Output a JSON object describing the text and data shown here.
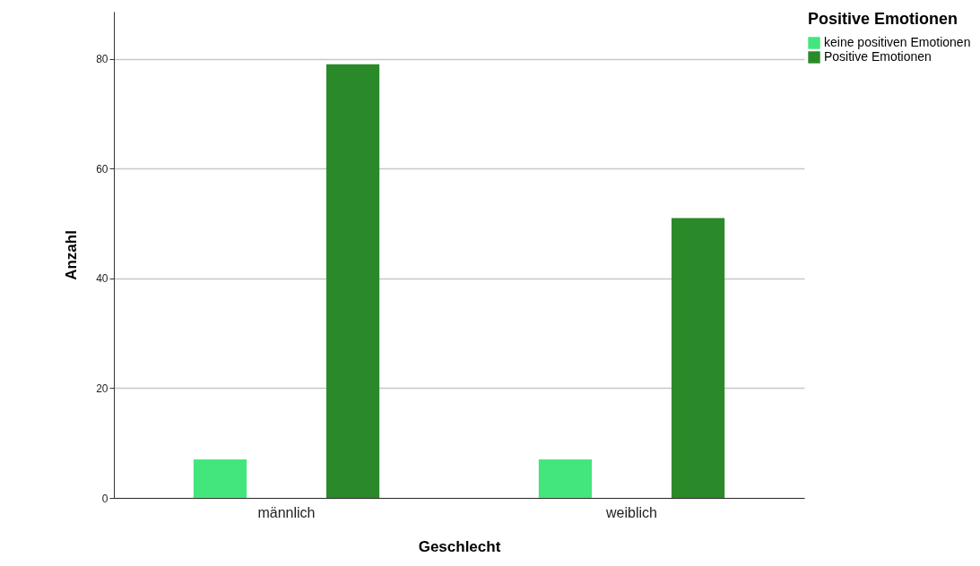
{
  "chart_data": {
    "type": "bar",
    "xlabel": "Geschlecht",
    "ylabel": "Anzahl",
    "legend_title": "Positive Emotionen",
    "categories": [
      "männlich",
      "weiblich"
    ],
    "series": [
      {
        "name": "keine positiven Emotionen",
        "color": "#42e67c",
        "values": [
          7,
          7
        ]
      },
      {
        "name": "Positive Emotionen",
        "color": "#2a8a2a",
        "values": [
          79,
          51
        ]
      }
    ],
    "ylim": [
      0,
      88.6
    ],
    "yticks": [
      0,
      20,
      40,
      60,
      80
    ],
    "grid": "y",
    "legend": "top right"
  }
}
